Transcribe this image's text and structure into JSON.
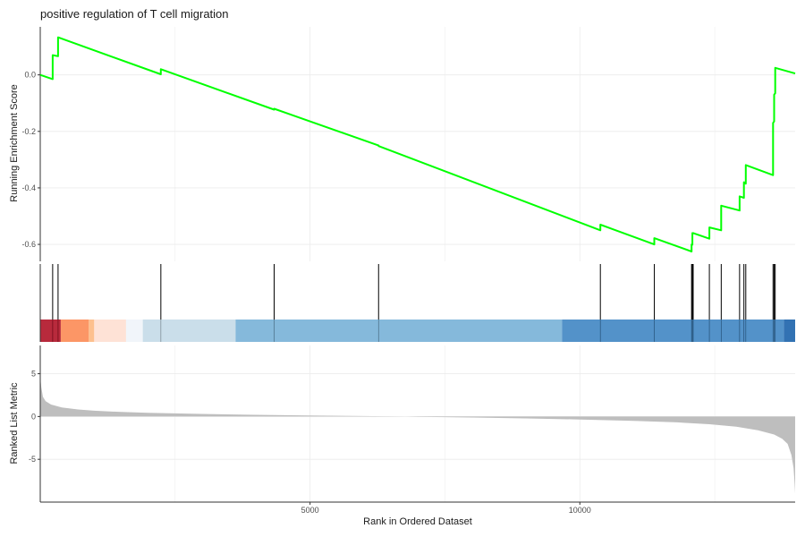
{
  "chart_data": {
    "type": "line",
    "title": "positive regulation of T cell migration",
    "xlabel": "Rank in Ordered Dataset",
    "x_ticks": [
      5000,
      10000
    ],
    "xlim": [
      0,
      13990
    ],
    "panels": {
      "running_score": {
        "ylabel": "Running Enrichment Score",
        "ylim": [
          -0.66,
          0.17
        ],
        "y_ticks": [
          0.0,
          -0.2,
          -0.4,
          -0.6
        ],
        "y_tick_labels": [
          "0.0",
          "-0.2",
          "-0.4",
          "-0.6"
        ],
        "line_color": "#00ff00",
        "series": [
          {
            "x": [
              0,
              230,
              230,
              330,
              330,
              2235,
              2235,
              4335,
              4335,
              6270,
              6270,
              10380,
              10380,
              11380,
              11380,
              12070,
              12070,
              12085,
              12085,
              12100,
              12100,
              12400,
              12400,
              12620,
              12620,
              12960,
              12960,
              13040,
              13040,
              13075,
              13075,
              13580,
              13580,
              13600,
              13600,
              13620,
              13620,
              13990
            ],
            "y": [
              0.0,
              -0.015,
              0.07,
              0.066,
              0.133,
              0.002,
              0.02,
              -0.123,
              -0.12,
              -0.25,
              -0.252,
              -0.55,
              -0.53,
              -0.6,
              -0.578,
              -0.625,
              -0.6,
              -0.601,
              -0.56,
              -0.561,
              -0.56,
              -0.58,
              -0.54,
              -0.55,
              -0.463,
              -0.48,
              -0.43,
              -0.435,
              -0.38,
              -0.385,
              -0.319,
              -0.355,
              -0.17,
              -0.165,
              -0.07,
              -0.065,
              0.025,
              0.005
            ]
          }
        ]
      },
      "gene_hits": {
        "positions": [
          230,
          330,
          2235,
          4335,
          6270,
          10380,
          11380,
          12070,
          12085,
          12100,
          12400,
          12620,
          12960,
          13040,
          13075,
          13580,
          13600,
          13620
        ],
        "color_bands": [
          {
            "from": 0,
            "to": 380,
            "color": "#b2182b"
          },
          {
            "from": 380,
            "to": 900,
            "color": "#fc8d59"
          },
          {
            "from": 900,
            "to": 1000,
            "color": "#fdbb84"
          },
          {
            "from": 1000,
            "to": 1590,
            "color": "#fee0d2"
          },
          {
            "from": 1590,
            "to": 1900,
            "color": "#f0f4fa"
          },
          {
            "from": 1900,
            "to": 3620,
            "color": "#c6dbe8"
          },
          {
            "from": 3620,
            "to": 9670,
            "color": "#7bb3d8"
          },
          {
            "from": 9670,
            "to": 13780,
            "color": "#4489c4"
          },
          {
            "from": 13780,
            "to": 13990,
            "color": "#2166ac"
          }
        ]
      },
      "ranked_metric": {
        "ylabel": "Ranked List Metric",
        "ylim": [
          -10,
          8.3
        ],
        "y_ticks": [
          5,
          0,
          -5
        ],
        "y_tick_labels": [
          "5",
          "0",
          "-5"
        ],
        "fill_color": "#bebebe",
        "series": [
          {
            "x": [
              0,
              20,
              50,
              100,
              200,
              400,
              700,
              1000,
              1500,
              2000,
              3000,
              4000,
              5000,
              6000,
              6780,
              7000,
              8000,
              9000,
              10000,
              11000,
              11800,
              12400,
              12900,
              13300,
              13600,
              13750,
              13850,
              13920,
              13960,
              13980,
              13990
            ],
            "y": [
              4.6,
              3.4,
              2.3,
              1.8,
              1.4,
              1.05,
              0.82,
              0.68,
              0.53,
              0.43,
              0.3,
              0.2,
              0.12,
              0.05,
              0.0,
              -0.03,
              -0.12,
              -0.22,
              -0.35,
              -0.5,
              -0.68,
              -0.9,
              -1.2,
              -1.6,
              -2.1,
              -2.6,
              -3.2,
              -4.5,
              -6.0,
              -7.8,
              -9.0
            ]
          }
        ]
      }
    },
    "grid": true
  }
}
